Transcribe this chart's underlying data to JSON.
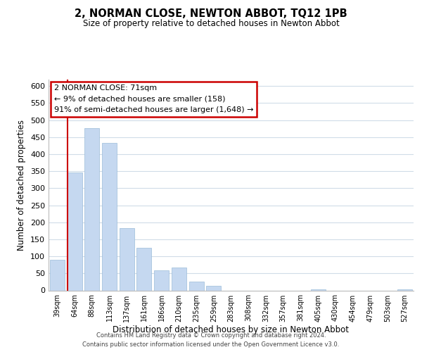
{
  "title": "2, NORMAN CLOSE, NEWTON ABBOT, TQ12 1PB",
  "subtitle": "Size of property relative to detached houses in Newton Abbot",
  "xlabel": "Distribution of detached houses by size in Newton Abbot",
  "ylabel": "Number of detached properties",
  "bar_labels": [
    "39sqm",
    "64sqm",
    "88sqm",
    "113sqm",
    "137sqm",
    "161sqm",
    "186sqm",
    "210sqm",
    "235sqm",
    "259sqm",
    "283sqm",
    "308sqm",
    "332sqm",
    "357sqm",
    "381sqm",
    "405sqm",
    "430sqm",
    "454sqm",
    "479sqm",
    "503sqm",
    "527sqm"
  ],
  "bar_values": [
    90,
    347,
    477,
    434,
    183,
    125,
    58,
    68,
    25,
    13,
    0,
    0,
    0,
    0,
    0,
    3,
    0,
    0,
    0,
    0,
    3
  ],
  "bar_color": "#c5d8f0",
  "bar_edge_color": "#9bbcd8",
  "vline_x_index": 1,
  "vline_color": "#cc0000",
  "ylim": [
    0,
    620
  ],
  "yticks": [
    0,
    50,
    100,
    150,
    200,
    250,
    300,
    350,
    400,
    450,
    500,
    550,
    600
  ],
  "annotation_title": "2 NORMAN CLOSE: 71sqm",
  "annotation_line1": "← 9% of detached houses are smaller (158)",
  "annotation_line2": "91% of semi-detached houses are larger (1,648) →",
  "annotation_box_color": "#ffffff",
  "annotation_box_edge": "#cc0000",
  "grid_color": "#d0dce8",
  "footer1": "Contains HM Land Registry data © Crown copyright and database right 2024.",
  "footer2": "Contains public sector information licensed under the Open Government Licence v3.0."
}
